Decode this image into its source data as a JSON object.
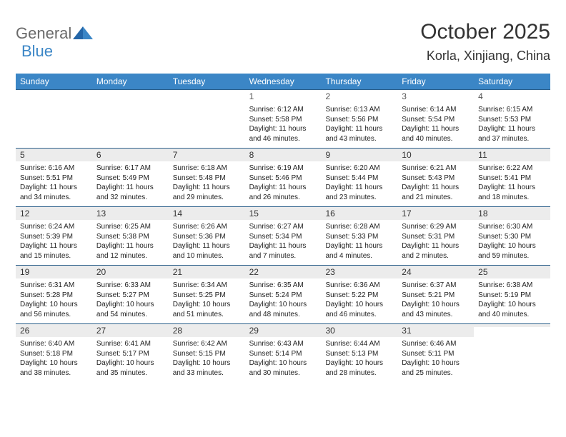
{
  "brand": {
    "part1": "General",
    "part2": "Blue"
  },
  "title": "October 2025",
  "location": "Korla, Xinjiang, China",
  "weekdays": [
    "Sunday",
    "Monday",
    "Tuesday",
    "Wednesday",
    "Thursday",
    "Friday",
    "Saturday"
  ],
  "colors": {
    "header_bg": "#3b86c6",
    "header_text": "#ffffff",
    "row_border": "#2b5f8a",
    "daynum_bg": "#ececec",
    "text": "#222222"
  },
  "typography": {
    "title_fontsize": 30,
    "location_fontsize": 18,
    "weekday_fontsize": 12,
    "daynum_fontsize": 12,
    "body_fontsize": 10
  },
  "weeks": [
    [
      {
        "day": "",
        "sunrise": "",
        "sunset": "",
        "daylight": ""
      },
      {
        "day": "",
        "sunrise": "",
        "sunset": "",
        "daylight": ""
      },
      {
        "day": "",
        "sunrise": "",
        "sunset": "",
        "daylight": ""
      },
      {
        "day": "1",
        "sunrise": "Sunrise: 6:12 AM",
        "sunset": "Sunset: 5:58 PM",
        "daylight": "Daylight: 11 hours and 46 minutes."
      },
      {
        "day": "2",
        "sunrise": "Sunrise: 6:13 AM",
        "sunset": "Sunset: 5:56 PM",
        "daylight": "Daylight: 11 hours and 43 minutes."
      },
      {
        "day": "3",
        "sunrise": "Sunrise: 6:14 AM",
        "sunset": "Sunset: 5:54 PM",
        "daylight": "Daylight: 11 hours and 40 minutes."
      },
      {
        "day": "4",
        "sunrise": "Sunrise: 6:15 AM",
        "sunset": "Sunset: 5:53 PM",
        "daylight": "Daylight: 11 hours and 37 minutes."
      }
    ],
    [
      {
        "day": "5",
        "sunrise": "Sunrise: 6:16 AM",
        "sunset": "Sunset: 5:51 PM",
        "daylight": "Daylight: 11 hours and 34 minutes."
      },
      {
        "day": "6",
        "sunrise": "Sunrise: 6:17 AM",
        "sunset": "Sunset: 5:49 PM",
        "daylight": "Daylight: 11 hours and 32 minutes."
      },
      {
        "day": "7",
        "sunrise": "Sunrise: 6:18 AM",
        "sunset": "Sunset: 5:48 PM",
        "daylight": "Daylight: 11 hours and 29 minutes."
      },
      {
        "day": "8",
        "sunrise": "Sunrise: 6:19 AM",
        "sunset": "Sunset: 5:46 PM",
        "daylight": "Daylight: 11 hours and 26 minutes."
      },
      {
        "day": "9",
        "sunrise": "Sunrise: 6:20 AM",
        "sunset": "Sunset: 5:44 PM",
        "daylight": "Daylight: 11 hours and 23 minutes."
      },
      {
        "day": "10",
        "sunrise": "Sunrise: 6:21 AM",
        "sunset": "Sunset: 5:43 PM",
        "daylight": "Daylight: 11 hours and 21 minutes."
      },
      {
        "day": "11",
        "sunrise": "Sunrise: 6:22 AM",
        "sunset": "Sunset: 5:41 PM",
        "daylight": "Daylight: 11 hours and 18 minutes."
      }
    ],
    [
      {
        "day": "12",
        "sunrise": "Sunrise: 6:24 AM",
        "sunset": "Sunset: 5:39 PM",
        "daylight": "Daylight: 11 hours and 15 minutes."
      },
      {
        "day": "13",
        "sunrise": "Sunrise: 6:25 AM",
        "sunset": "Sunset: 5:38 PM",
        "daylight": "Daylight: 11 hours and 12 minutes."
      },
      {
        "day": "14",
        "sunrise": "Sunrise: 6:26 AM",
        "sunset": "Sunset: 5:36 PM",
        "daylight": "Daylight: 11 hours and 10 minutes."
      },
      {
        "day": "15",
        "sunrise": "Sunrise: 6:27 AM",
        "sunset": "Sunset: 5:34 PM",
        "daylight": "Daylight: 11 hours and 7 minutes."
      },
      {
        "day": "16",
        "sunrise": "Sunrise: 6:28 AM",
        "sunset": "Sunset: 5:33 PM",
        "daylight": "Daylight: 11 hours and 4 minutes."
      },
      {
        "day": "17",
        "sunrise": "Sunrise: 6:29 AM",
        "sunset": "Sunset: 5:31 PM",
        "daylight": "Daylight: 11 hours and 2 minutes."
      },
      {
        "day": "18",
        "sunrise": "Sunrise: 6:30 AM",
        "sunset": "Sunset: 5:30 PM",
        "daylight": "Daylight: 10 hours and 59 minutes."
      }
    ],
    [
      {
        "day": "19",
        "sunrise": "Sunrise: 6:31 AM",
        "sunset": "Sunset: 5:28 PM",
        "daylight": "Daylight: 10 hours and 56 minutes."
      },
      {
        "day": "20",
        "sunrise": "Sunrise: 6:33 AM",
        "sunset": "Sunset: 5:27 PM",
        "daylight": "Daylight: 10 hours and 54 minutes."
      },
      {
        "day": "21",
        "sunrise": "Sunrise: 6:34 AM",
        "sunset": "Sunset: 5:25 PM",
        "daylight": "Daylight: 10 hours and 51 minutes."
      },
      {
        "day": "22",
        "sunrise": "Sunrise: 6:35 AM",
        "sunset": "Sunset: 5:24 PM",
        "daylight": "Daylight: 10 hours and 48 minutes."
      },
      {
        "day": "23",
        "sunrise": "Sunrise: 6:36 AM",
        "sunset": "Sunset: 5:22 PM",
        "daylight": "Daylight: 10 hours and 46 minutes."
      },
      {
        "day": "24",
        "sunrise": "Sunrise: 6:37 AM",
        "sunset": "Sunset: 5:21 PM",
        "daylight": "Daylight: 10 hours and 43 minutes."
      },
      {
        "day": "25",
        "sunrise": "Sunrise: 6:38 AM",
        "sunset": "Sunset: 5:19 PM",
        "daylight": "Daylight: 10 hours and 40 minutes."
      }
    ],
    [
      {
        "day": "26",
        "sunrise": "Sunrise: 6:40 AM",
        "sunset": "Sunset: 5:18 PM",
        "daylight": "Daylight: 10 hours and 38 minutes."
      },
      {
        "day": "27",
        "sunrise": "Sunrise: 6:41 AM",
        "sunset": "Sunset: 5:17 PM",
        "daylight": "Daylight: 10 hours and 35 minutes."
      },
      {
        "day": "28",
        "sunrise": "Sunrise: 6:42 AM",
        "sunset": "Sunset: 5:15 PM",
        "daylight": "Daylight: 10 hours and 33 minutes."
      },
      {
        "day": "29",
        "sunrise": "Sunrise: 6:43 AM",
        "sunset": "Sunset: 5:14 PM",
        "daylight": "Daylight: 10 hours and 30 minutes."
      },
      {
        "day": "30",
        "sunrise": "Sunrise: 6:44 AM",
        "sunset": "Sunset: 5:13 PM",
        "daylight": "Daylight: 10 hours and 28 minutes."
      },
      {
        "day": "31",
        "sunrise": "Sunrise: 6:46 AM",
        "sunset": "Sunset: 5:11 PM",
        "daylight": "Daylight: 10 hours and 25 minutes."
      },
      {
        "day": "",
        "sunrise": "",
        "sunset": "",
        "daylight": ""
      }
    ]
  ]
}
